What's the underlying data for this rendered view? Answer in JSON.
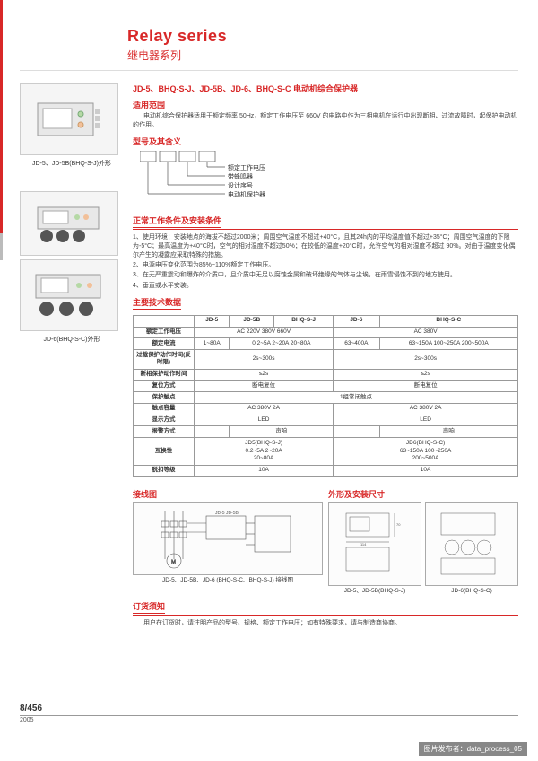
{
  "colors": {
    "accent": "#d82828",
    "text": "#333333",
    "border": "#999999",
    "light_border": "#cccccc"
  },
  "header": {
    "en": "Relay series",
    "cn": "继电器系列"
  },
  "figures": {
    "fig1_caption": "JD-5、JD-5B(BHQ-S-J)外形",
    "fig2_caption": "JD-6(BHQ-S-C)外形"
  },
  "title": "JD-5、BHQ-S-J、JD-5B、JD-6、BHQ-S-C 电动机综合保护器",
  "scope": {
    "heading": "适用范围",
    "text": "电动机综合保护器适用于额定频率 50Hz，额定工作电压至 660V 的电路中作为三相电机在运行中出现断相、过流故障时，起保护电动机的作用。"
  },
  "model": {
    "heading": "型号及其含义",
    "labels": [
      "额定工作电压",
      "带蜂鸣器",
      "设计序号",
      "电动机保护器"
    ]
  },
  "conditions": {
    "heading": "正常工作条件及安装条件",
    "items": [
      "1、使用环境：安装地点的海拔不超过2000米；周围空气温度不超过+40°C，且其24h内的平均温度值不超过+35°C；周围空气温度的下限为-5°C；最高温度为+40°C时，空气的相对湿度不超过50%；在较低的温度+20°C时，允许空气的相对湿度不超过 90%。对由于温度变化偶尔产生的凝露应采取特殊的措施。",
      "2、电源电压变化范围为85%~110%额定工作电压。",
      "3、在无严重震动和爆炸的介质中，且介质中无足以腐蚀金属和破坏绝缘的气体与尘埃，在雨雪侵蚀不到的地方使用。",
      "4、垂直或水平安装。"
    ]
  },
  "spec": {
    "heading": "主要技术数据",
    "cols": [
      "JD-5",
      "JD-5B",
      "BHQ-S-J",
      "JD-6",
      "BHQ-S-C"
    ],
    "rows": [
      {
        "h": "额定工作电压",
        "cells": [
          {
            "span": 3,
            "v": "AC 220V 380V 660V"
          },
          {
            "span": 2,
            "v": "AC 380V"
          }
        ]
      },
      {
        "h": "额定电流",
        "cells": [
          {
            "span": 1,
            "v": "1~80A"
          },
          {
            "span": 2,
            "v": "0.2~5A 2~20A 20~80A"
          },
          {
            "span": 1,
            "v": "63~400A"
          },
          {
            "span": 1,
            "v": "63~150A 100~250A 200~500A"
          }
        ]
      },
      {
        "h": "过载保护动作时间(反时限)",
        "cells": [
          {
            "span": 3,
            "v": "2s~300s"
          },
          {
            "span": 2,
            "v": "2s~300s"
          }
        ]
      },
      {
        "h": "断相保护动作时间",
        "cells": [
          {
            "span": 3,
            "v": "≤2s"
          },
          {
            "span": 2,
            "v": "≤2s"
          }
        ]
      },
      {
        "h": "复位方式",
        "cells": [
          {
            "span": 3,
            "v": "断电复位"
          },
          {
            "span": 2,
            "v": "断电复位"
          }
        ]
      },
      {
        "h": "保护触点",
        "cells": [
          {
            "span": 5,
            "v": "1组常闭触点"
          }
        ]
      },
      {
        "h": "触点容量",
        "cells": [
          {
            "span": 3,
            "v": "AC 380V 2A"
          },
          {
            "span": 2,
            "v": "AC 380V 2A"
          }
        ]
      },
      {
        "h": "显示方式",
        "cells": [
          {
            "span": 3,
            "v": "LED"
          },
          {
            "span": 2,
            "v": "LED"
          }
        ]
      },
      {
        "h": "报警方式",
        "cells": [
          {
            "span": 1,
            "v": ""
          },
          {
            "span": 2,
            "v": "声响"
          },
          {
            "span": 1,
            "v": ""
          },
          {
            "span": 1,
            "v": "声响"
          }
        ]
      },
      {
        "h": "互换性",
        "cells": [
          {
            "span": 3,
            "v": "JD5(BHQ-S-J)\n0.2~5A 2~20A\n20~80A"
          },
          {
            "span": 2,
            "v": "JD6(BHQ-S-C)\n63~150A 100~250A\n200~500A"
          }
        ]
      },
      {
        "h": "脱扣等级",
        "cells": [
          {
            "span": 3,
            "v": "10A"
          },
          {
            "span": 2,
            "v": "10A"
          }
        ]
      }
    ]
  },
  "diagrams": {
    "wiring_h": "接线图",
    "dim_h": "外形及安装尺寸",
    "wiring_caption": "JD-5、JD-5B、JD-6 (BHQ-S-C、BHQ-S-J) 接线图",
    "dim_caption_a": "JD-5、JD-5B(BHQ-S-J)",
    "dim_caption_b": "JD-6(BHQ-S-C)"
  },
  "order": {
    "heading": "订货须知",
    "text": "用户在订货时，请注明产品的型号、规格、额定工作电压；如有特殊要求，请与制造商协商。"
  },
  "footer": {
    "page": "8/456",
    "year": "2005"
  },
  "watermark": "图片发布者：data_process_05"
}
